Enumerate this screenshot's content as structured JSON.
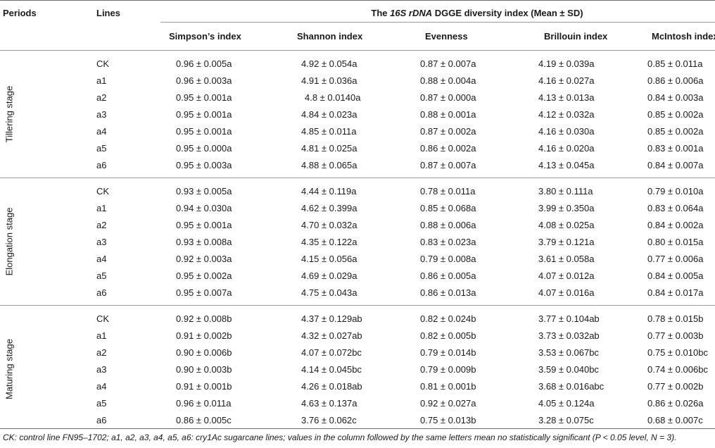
{
  "table": {
    "col_periods": "Periods",
    "col_lines": "Lines",
    "title_italic": "16S rDNA",
    "title_prefix": "The ",
    "title_suffix": " DGGE diversity index (Mean ± SD)",
    "index_headers": [
      "Simpson’s index",
      "Shannon index",
      "Evenness",
      "Brillouin index",
      "McIntosh index"
    ],
    "groups": [
      {
        "period": "Tillering stage",
        "rows": [
          {
            "line": "CK",
            "values": [
              "0.96 ± 0.005a",
              "4.92 ± 0.054a",
              "0.87 ± 0.007a",
              "4.19 ± 0.039a",
              "0.85 ± 0.011a"
            ]
          },
          {
            "line": "a1",
            "values": [
              "0.96 ± 0.003a",
              "4.91 ± 0.036a",
              "0.88 ± 0.004a",
              "4.16 ± 0.027a",
              "0.86 ± 0.006a"
            ]
          },
          {
            "line": "a2",
            "values": [
              "0.95 ± 0.001a",
              "4.8 ± 0.0140a",
              "0.87 ± 0.000a",
              "4.13 ± 0.013a",
              "0.84 ± 0.003a"
            ]
          },
          {
            "line": "a3",
            "values": [
              "0.95 ± 0.001a",
              "4.84 ± 0.023a",
              "0.88 ± 0.001a",
              "4.12 ± 0.032a",
              "0.85 ± 0.002a"
            ]
          },
          {
            "line": "a4",
            "values": [
              "0.95 ± 0.001a",
              "4.85 ± 0.011a",
              "0.87 ± 0.002a",
              "4.16 ± 0.030a",
              "0.85 ± 0.002a"
            ]
          },
          {
            "line": "a5",
            "values": [
              "0.95 ± 0.000a",
              "4.81 ± 0.025a",
              "0.86 ± 0.002a",
              "4.16 ± 0.020a",
              "0.83 ± 0.001a"
            ]
          },
          {
            "line": "a6",
            "values": [
              "0.95 ± 0.003a",
              "4.88 ± 0.065a",
              "0.87 ± 0.007a",
              "4.13 ± 0.045a",
              "0.84 ± 0.007a"
            ]
          }
        ]
      },
      {
        "period": "Elongation stage",
        "rows": [
          {
            "line": "CK",
            "values": [
              "0.93 ± 0.005a",
              "4.44 ± 0.119a",
              "0.78 ± 0.011a",
              "3.80 ± 0.111a",
              "0.79 ± 0.010a"
            ]
          },
          {
            "line": "a1",
            "values": [
              "0.94 ± 0.030a",
              "4.62 ± 0.399a",
              "0.85 ± 0.068a",
              "3.99 ± 0.350a",
              "0.83 ± 0.064a"
            ]
          },
          {
            "line": "a2",
            "values": [
              "0.95 ± 0.001a",
              "4.70 ± 0.032a",
              "0.88 ± 0.006a",
              "4.08 ± 0.025a",
              "0.84 ± 0.002a"
            ]
          },
          {
            "line": "a3",
            "values": [
              "0.93 ± 0.008a",
              "4.35 ± 0.122a",
              "0.83 ± 0.023a",
              "3.79 ± 0.121a",
              "0.80 ± 0.015a"
            ]
          },
          {
            "line": "a4",
            "values": [
              "0.92 ± 0.003a",
              "4.15 ± 0.056a",
              "0.79 ± 0.008a",
              "3.61 ± 0.058a",
              "0.77 ± 0.006a"
            ]
          },
          {
            "line": "a5",
            "values": [
              "0.95 ± 0.002a",
              "4.69 ± 0.029a",
              "0.86 ± 0.005a",
              "4.07 ± 0.012a",
              "0.84 ± 0.005a"
            ]
          },
          {
            "line": "a6",
            "values": [
              "0.95 ± 0.007a",
              "4.75 ± 0.043a",
              "0.86 ± 0.013a",
              "4.07 ± 0.016a",
              "0.84 ± 0.017a"
            ]
          }
        ]
      },
      {
        "period": "Maturing stage",
        "rows": [
          {
            "line": "CK",
            "values": [
              "0.92 ± 0.008b",
              "4.37 ± 0.129ab",
              "0.82 ± 0.024b",
              "3.77 ± 0.104ab",
              "0.78 ± 0.015b"
            ]
          },
          {
            "line": "a1",
            "values": [
              "0.91 ± 0.002b",
              "4.32 ± 0.027ab",
              "0.82 ± 0.005b",
              "3.73 ± 0.032ab",
              "0.77 ± 0.003b"
            ]
          },
          {
            "line": "a2",
            "values": [
              "0.90 ± 0.006b",
              "4.07 ± 0.072bc",
              "0.79 ± 0.014b",
              "3.53 ± 0.067bc",
              "0.75 ± 0.010bc"
            ]
          },
          {
            "line": "a3",
            "values": [
              "0.90 ± 0.003b",
              "4.14 ± 0.045bc",
              "0.79 ± 0.009b",
              "3.59 ± 0.040bc",
              "0.74 ± 0.006bc"
            ]
          },
          {
            "line": "a4",
            "values": [
              "0.91 ± 0.001b",
              "4.26 ± 0.018ab",
              "0.81 ± 0.001b",
              "3.68 ± 0.016abc",
              "0.77 ± 0.002b"
            ]
          },
          {
            "line": "a5",
            "values": [
              "0.96 ± 0.011a",
              "4.63 ± 0.137a",
              "0.92 ± 0.027a",
              "4.05 ± 0.124a",
              "0.86 ± 0.026a"
            ]
          },
          {
            "line": "a6",
            "values": [
              "0.86 ± 0.005c",
              "3.76 ± 0.062c",
              "0.75 ± 0.013b",
              "3.28 ± 0.075c",
              "0.68 ± 0.007c"
            ]
          }
        ]
      }
    ],
    "footnote": "CK: control line FN95–1702; a1, a2, a3, a4, a5, a6: cry1Ac sugarcane lines; values in the column followed by the same letters mean no statistically significant (P < 0.05 level, N = 3)."
  }
}
